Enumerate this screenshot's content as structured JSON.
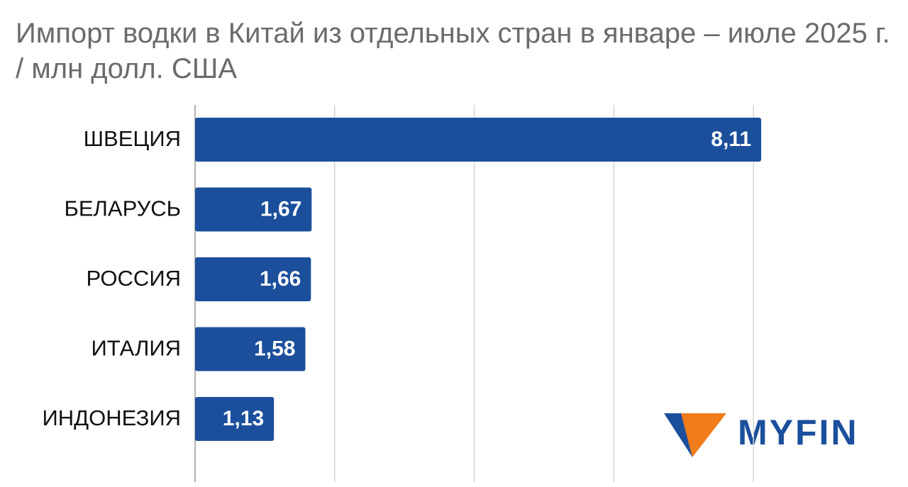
{
  "chart_data": {
    "type": "bar",
    "orientation": "horizontal",
    "title": "Импорт водки в Китай из отдельных стран в январе – июле 2025 г. / млн долл. США",
    "categories": [
      "ШВЕЦИЯ",
      "БЕЛАРУСЬ",
      "РОССИЯ",
      "ИТАЛИЯ",
      "ИНДОНЕЗИЯ"
    ],
    "values": [
      8.11,
      1.67,
      1.66,
      1.58,
      1.13
    ],
    "value_labels": [
      "8,11",
      "1,67",
      "1,66",
      "1,58",
      "1,13"
    ],
    "color": "#1b4f9c",
    "xlim": [
      0,
      10
    ],
    "xticks": [
      0,
      2,
      4,
      6,
      8
    ],
    "grid": true,
    "logo": "MYFIN"
  }
}
